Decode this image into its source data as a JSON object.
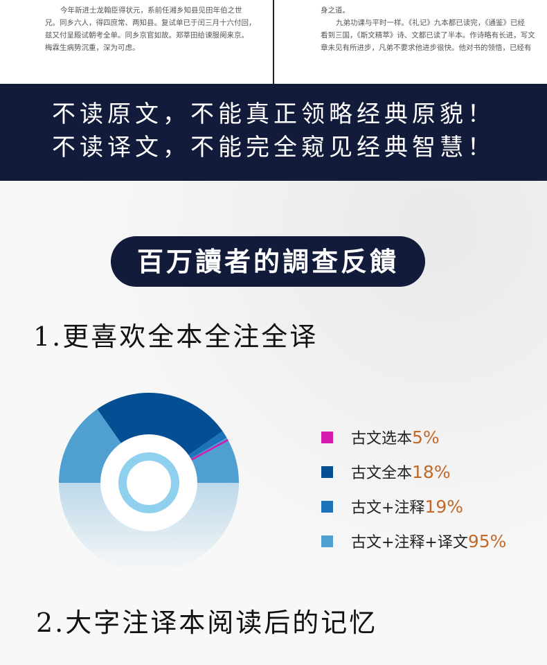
{
  "pages": {
    "left_lines": [
      "今年新进士龙翰臣得状元，系前任湘乡知县见田年伯之世",
      "兄。同乡六人，得四庶常、两知县。复试单已于闰三月十六付回，",
      "兹又付呈殿试朝考全单。同乡京官如故。郑莘田给谏服阕来京。",
      "梅霖生病势沉重，深为可虑。"
    ],
    "right_lines": [
      "身之道。",
      "九弟功课与平时一样。《礼记》九本都已读完，《通鉴》已经",
      "看到三国，《斯文精萃》诗、文都已读了半本。作诗略有长进，写文",
      "章未见有所进步，凡弟不要求他进步很快。他对书的领悟，已经有"
    ]
  },
  "banner": {
    "line1": "不读原文，不能真正领略经典原貌！",
    "line2": "不读译文，不能完全窥见经典智慧！"
  },
  "survey_title": "百万讀者的調查反饋",
  "heading1": "1.更喜欢全本全注全译",
  "heading2": "2.大字注译本阅读后的记忆",
  "chart_data": {
    "type": "pie",
    "style": "half-donut",
    "legend_position": "right",
    "series": [
      {
        "name": "古文选本",
        "label": "5%",
        "value": 5,
        "color": "#d21aae"
      },
      {
        "name": "古文全本",
        "label": "18%",
        "value": 18,
        "color": "#044f93"
      },
      {
        "name": "古文+注释",
        "label": "19%",
        "value": 19,
        "color": "#1d73b9"
      },
      {
        "name": "古文+注释+译文",
        "label": "95%",
        "value": 95,
        "color": "#4f9fd0"
      }
    ]
  }
}
